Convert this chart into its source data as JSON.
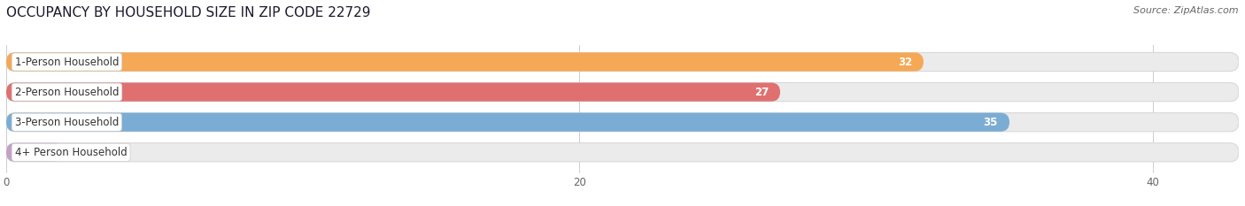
{
  "title": "OCCUPANCY BY HOUSEHOLD SIZE IN ZIP CODE 22729",
  "source": "Source: ZipAtlas.com",
  "categories": [
    "1-Person Household",
    "2-Person Household",
    "3-Person Household",
    "4+ Person Household"
  ],
  "values": [
    32,
    27,
    35,
    0
  ],
  "bar_colors": [
    "#F5A855",
    "#E07070",
    "#7BADD4",
    "#C4A0C8"
  ],
  "background_color": "#ffffff",
  "bar_bg_color": "#ebebeb",
  "bar_bg_edge_color": "#d8d8d8",
  "xlim_max": 43,
  "xticks": [
    0,
    20,
    40
  ],
  "bar_height": 0.62,
  "label_fontsize": 8.5,
  "title_fontsize": 11,
  "source_fontsize": 8,
  "value_label_color": "#ffffff",
  "zero_label_color": "#666666",
  "grid_color": "#cccccc",
  "title_color": "#1a1a2e",
  "source_color": "#666666",
  "tick_color": "#666666"
}
